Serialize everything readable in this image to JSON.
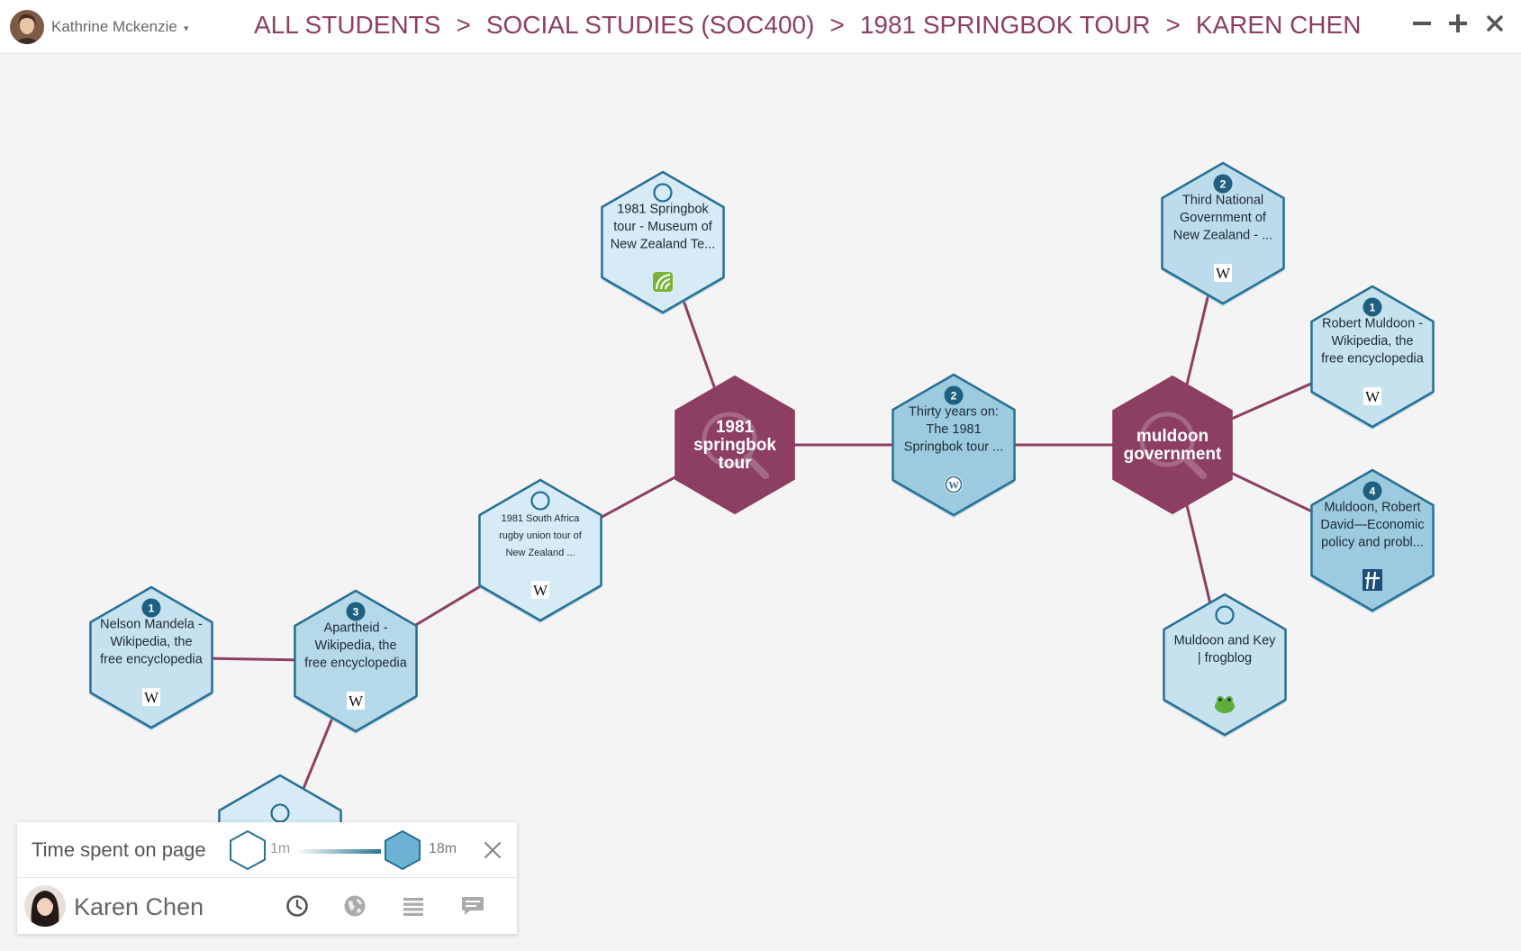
{
  "user": {
    "name": "Kathrine Mckenzie",
    "caret": "▾"
  },
  "breadcrumb": {
    "sep": ">",
    "items": [
      "ALL STUDENTS",
      "SOCIAL STUDIES (SOC400)",
      "1981 SPRINGBOK TOUR",
      "KAREN CHEN"
    ]
  },
  "graph": {
    "topics": [
      {
        "id": "t1",
        "lines": [
          "1981",
          "springbok",
          "tour"
        ]
      },
      {
        "id": "t2",
        "lines": [
          "muldoon",
          "government"
        ]
      }
    ],
    "pages": [
      {
        "id": "p1",
        "count": null,
        "lines": [
          "1981 Springbok",
          "tour - Museum of",
          "New Zealand Te..."
        ],
        "icon": "nzhistory-icon",
        "time": 0.05
      },
      {
        "id": "p2",
        "count": "2",
        "lines": [
          "Thirty years on:",
          "The 1981",
          "Springbok tour ..."
        ],
        "icon": "wordpress-icon",
        "time": 0.6
      },
      {
        "id": "p3",
        "count": "2",
        "lines": [
          "Third National",
          "Government of",
          "New Zealand - ..."
        ],
        "icon": "wikipedia-icon",
        "time": 0.3
      },
      {
        "id": "p4",
        "count": "1",
        "lines": [
          "Robert Muldoon -",
          "Wikipedia, the",
          "free encyclopedia"
        ],
        "icon": "wikipedia-icon",
        "time": 0.2
      },
      {
        "id": "p5",
        "count": "4",
        "lines": [
          "Muldoon, Robert",
          "David—Economic",
          "policy and probl..."
        ],
        "icon": "teara-icon",
        "time": 0.6
      },
      {
        "id": "p6",
        "count": null,
        "lines": [
          "Muldoon and Key",
          "| frogblog"
        ],
        "icon": "frog-icon",
        "time": 0.2
      },
      {
        "id": "p7",
        "count": null,
        "lines": [
          "1981 South Africa",
          "rugby union tour of",
          "New Zealand ..."
        ],
        "icon": "wikipedia-icon",
        "time": 0.05
      },
      {
        "id": "p8",
        "count": "3",
        "lines": [
          "Apartheid -",
          "Wikipedia, the",
          "free encyclopedia"
        ],
        "icon": "wikipedia-icon",
        "time": 0.35
      },
      {
        "id": "p9",
        "count": "1",
        "lines": [
          "Nelson Mandela -",
          "Wikipedia, the",
          "free encyclopedia"
        ],
        "icon": "wikipedia-icon",
        "time": 0.2
      },
      {
        "id": "p10",
        "count": null,
        "lines": [],
        "icon": null,
        "time": 0.05
      }
    ],
    "edges": [
      [
        "t1",
        "p1"
      ],
      [
        "t1",
        "p2"
      ],
      [
        "p2",
        "t2"
      ],
      [
        "t2",
        "p3"
      ],
      [
        "t2",
        "p4"
      ],
      [
        "t2",
        "p5"
      ],
      [
        "t2",
        "p6"
      ],
      [
        "t1",
        "p7"
      ],
      [
        "p7",
        "p8"
      ],
      [
        "p8",
        "p9"
      ],
      [
        "p8",
        "p10"
      ]
    ]
  },
  "legend": {
    "title": "Time spent on page",
    "min_label": "1m",
    "max_label": "18m"
  },
  "student": {
    "name": "Karen Chen"
  },
  "colors": {
    "accent": "#8c3f62",
    "hex_light": "#dbeef7",
    "hex_dark": "#72b3d1",
    "hex_border": "#2a6f93",
    "edge": "#8c3f62"
  }
}
